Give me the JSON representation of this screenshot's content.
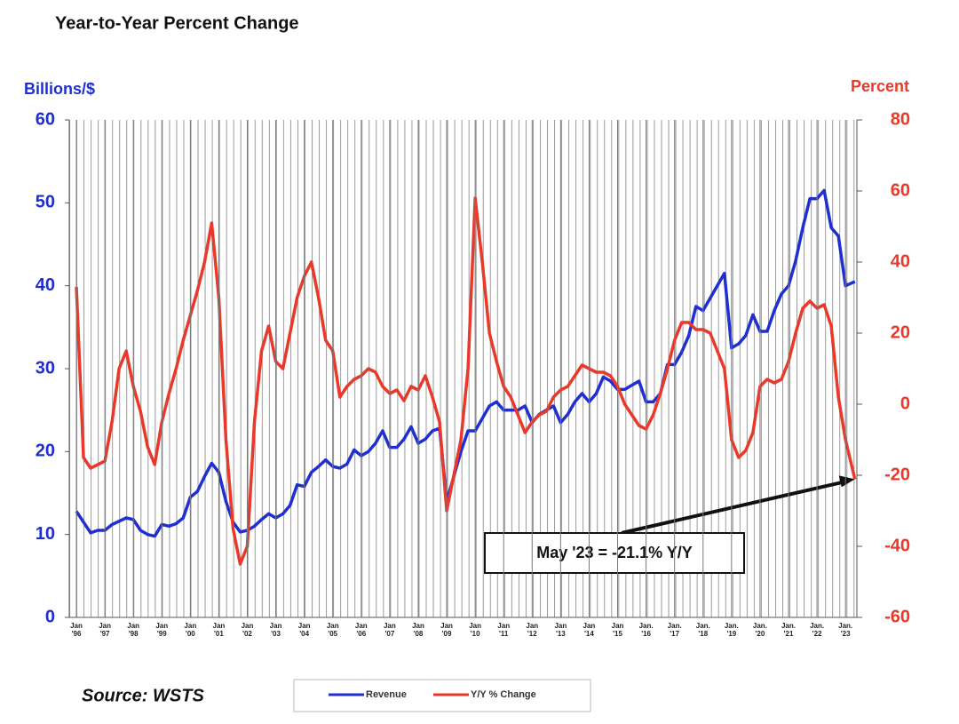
{
  "chart_data": {
    "type": "line",
    "title": "Year-to-Year Percent Change",
    "y_label": "Billions/$",
    "y2_label": "Percent",
    "source": "Source: WSTS",
    "annotation": "May '23 = -21.1% Y/Y",
    "grid": true,
    "xlim": [
      1995.75,
      2023.4
    ],
    "xticks": [
      {
        "value": 1996,
        "label": "Jan\n'96"
      },
      {
        "value": 1997,
        "label": "Jan\n'97"
      },
      {
        "value": 1998,
        "label": "Jan\n'98"
      },
      {
        "value": 1999,
        "label": "Jan\n'99"
      },
      {
        "value": 2000,
        "label": "Jan\n'00"
      },
      {
        "value": 2001,
        "label": "Jan\n'01"
      },
      {
        "value": 2002,
        "label": "Jan\n'02"
      },
      {
        "value": 2003,
        "label": "Jan\n'03"
      },
      {
        "value": 2004,
        "label": "Jan\n'04"
      },
      {
        "value": 2005,
        "label": "Jan\n'05"
      },
      {
        "value": 2006,
        "label": "Jan\n'06"
      },
      {
        "value": 2007,
        "label": "Jan\n'07"
      },
      {
        "value": 2008,
        "label": "Jan\n'08"
      },
      {
        "value": 2009,
        "label": "Jan\n'09"
      },
      {
        "value": 2010,
        "label": "Jan\n'10"
      },
      {
        "value": 2011,
        "label": "Jan\n'11"
      },
      {
        "value": 2012,
        "label": "Jan\n'12"
      },
      {
        "value": 2013,
        "label": "Jan\n'13"
      },
      {
        "value": 2014,
        "label": "Jan\n'14"
      },
      {
        "value": 2015,
        "label": "Jan\n'15"
      },
      {
        "value": 2016,
        "label": "Jan.\n'16"
      },
      {
        "value": 2017,
        "label": "Jan.\n'17"
      },
      {
        "value": 2018,
        "label": "Jan.\n'18"
      },
      {
        "value": 2019,
        "label": "Jan.\n'19"
      },
      {
        "value": 2020,
        "label": "Jan.\n'20"
      },
      {
        "value": 2021,
        "label": "Jan.\n'21"
      },
      {
        "value": 2022,
        "label": "Jan.\n'22"
      },
      {
        "value": 2023,
        "label": "Jan.\n'23"
      }
    ],
    "ylim": [
      0,
      60
    ],
    "yticks": [
      0,
      10,
      20,
      30,
      40,
      50,
      60
    ],
    "y2lim": [
      -60,
      80
    ],
    "y2ticks": [
      -60,
      -40,
      -20,
      0,
      20,
      40,
      60,
      80
    ],
    "x": [
      1996,
      1996.25,
      1996.5,
      1996.75,
      1997,
      1997.25,
      1997.5,
      1997.75,
      1998,
      1998.25,
      1998.5,
      1998.75,
      1999,
      1999.25,
      1999.5,
      1999.75,
      2000,
      2000.25,
      2000.5,
      2000.75,
      2001,
      2001.25,
      2001.5,
      2001.75,
      2002,
      2002.25,
      2002.5,
      2002.75,
      2003,
      2003.25,
      2003.5,
      2003.75,
      2004,
      2004.25,
      2004.5,
      2004.75,
      2005,
      2005.25,
      2005.5,
      2005.75,
      2006,
      2006.25,
      2006.5,
      2006.75,
      2007,
      2007.25,
      2007.5,
      2007.75,
      2008,
      2008.25,
      2008.5,
      2008.75,
      2009,
      2009.25,
      2009.5,
      2009.75,
      2010,
      2010.25,
      2010.5,
      2010.75,
      2011,
      2011.25,
      2011.5,
      2011.75,
      2012,
      2012.25,
      2012.5,
      2012.75,
      2013,
      2013.25,
      2013.5,
      2013.75,
      2014,
      2014.25,
      2014.5,
      2014.75,
      2015,
      2015.25,
      2015.5,
      2015.75,
      2016,
      2016.25,
      2016.5,
      2016.75,
      2017,
      2017.25,
      2017.5,
      2017.75,
      2018,
      2018.25,
      2018.5,
      2018.75,
      2019,
      2019.25,
      2019.5,
      2019.75,
      2020,
      2020.25,
      2020.5,
      2020.75,
      2021,
      2021.25,
      2021.5,
      2021.75,
      2022,
      2022.25,
      2022.5,
      2022.75,
      2023,
      2023.33
    ],
    "series": [
      {
        "name": "Revenue",
        "color": "#1f2fd0",
        "values": [
          12.8,
          11.5,
          10.2,
          10.5,
          10.5,
          11.2,
          11.6,
          12,
          11.8,
          10.5,
          10,
          9.8,
          11.2,
          11,
          11.3,
          12,
          14.5,
          15.2,
          17,
          18.6,
          17.5,
          14,
          11.5,
          10.3,
          10.5,
          11,
          11.8,
          12.5,
          12,
          12.5,
          13.5,
          16,
          15.8,
          17.5,
          18.2,
          19,
          18.2,
          18,
          18.5,
          20.2,
          19.5,
          20,
          21,
          22.5,
          20.5,
          20.5,
          21.5,
          23,
          21,
          21.5,
          22.5,
          22.8,
          14,
          17,
          20,
          22.5,
          22.5,
          24,
          25.5,
          26,
          25,
          25,
          25,
          25.5,
          23.5,
          24.5,
          25,
          25.5,
          23.5,
          24.5,
          26,
          27,
          26,
          27,
          29,
          28.5,
          27.5,
          27.5,
          28,
          28.5,
          26,
          26,
          27,
          30.5,
          30.5,
          32,
          34,
          37.5,
          37,
          38.5,
          40,
          41.5,
          32.5,
          33,
          34,
          36.5,
          34.5,
          34.5,
          37,
          39,
          40,
          43,
          47,
          50.5,
          50.5,
          51.5,
          47,
          46,
          40,
          40.5
        ]
      },
      {
        "name": "Y/Y % Change",
        "color": "#e8392a",
        "axis": "y2",
        "values": [
          33,
          -15,
          -18,
          -17,
          -16,
          -5,
          10,
          15,
          5,
          -2,
          -12,
          -17,
          -5,
          3,
          10,
          18,
          25,
          32,
          40,
          51,
          30,
          -10,
          -35,
          -45,
          -40,
          -5,
          15,
          22,
          12,
          10,
          20,
          30,
          36,
          40,
          30,
          18,
          15,
          2,
          5,
          7,
          8,
          10,
          9,
          5,
          3,
          4,
          1,
          5,
          4,
          8,
          2,
          -5,
          -30,
          -20,
          -10,
          10,
          58,
          40,
          20,
          12,
          5,
          2,
          -3,
          -8,
          -5,
          -3,
          -2,
          2,
          4,
          5,
          8,
          11,
          10,
          9,
          9,
          8,
          5,
          0,
          -3,
          -6,
          -7,
          -3,
          3,
          10,
          18,
          23,
          23,
          21,
          21,
          20,
          15,
          10,
          -10,
          -15,
          -13,
          -8,
          5,
          7,
          6,
          7,
          12,
          20,
          27,
          29,
          27,
          28,
          22,
          2,
          -10,
          -21.1
        ]
      }
    ]
  }
}
